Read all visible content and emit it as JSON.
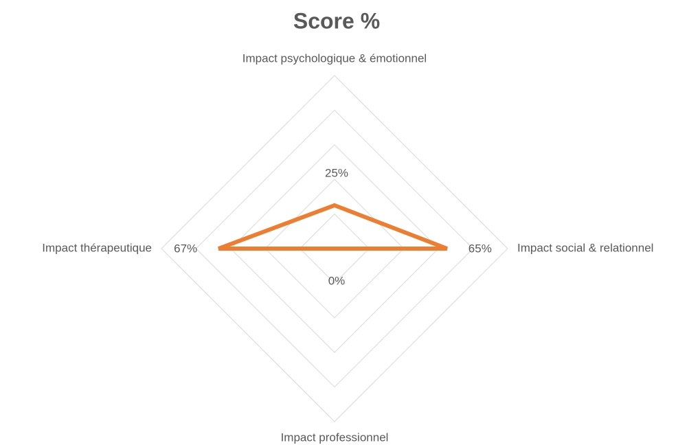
{
  "chart_data": {
    "type": "radar",
    "title": "Score %",
    "categories": [
      "Impact psychologique & émotionnel",
      "Impact social & relationnel",
      "Impact professionnel",
      "Impact thérapeutique"
    ],
    "series": [
      {
        "name": "Score %",
        "color": "#ed7d31",
        "values": [
          25,
          65,
          0,
          67
        ],
        "value_labels": [
          "25%",
          "65%",
          "0%",
          "67%"
        ]
      }
    ],
    "rlim": [
      0,
      100
    ],
    "rticks": [
      0,
      20,
      40,
      60,
      80,
      100
    ],
    "grid": true
  }
}
